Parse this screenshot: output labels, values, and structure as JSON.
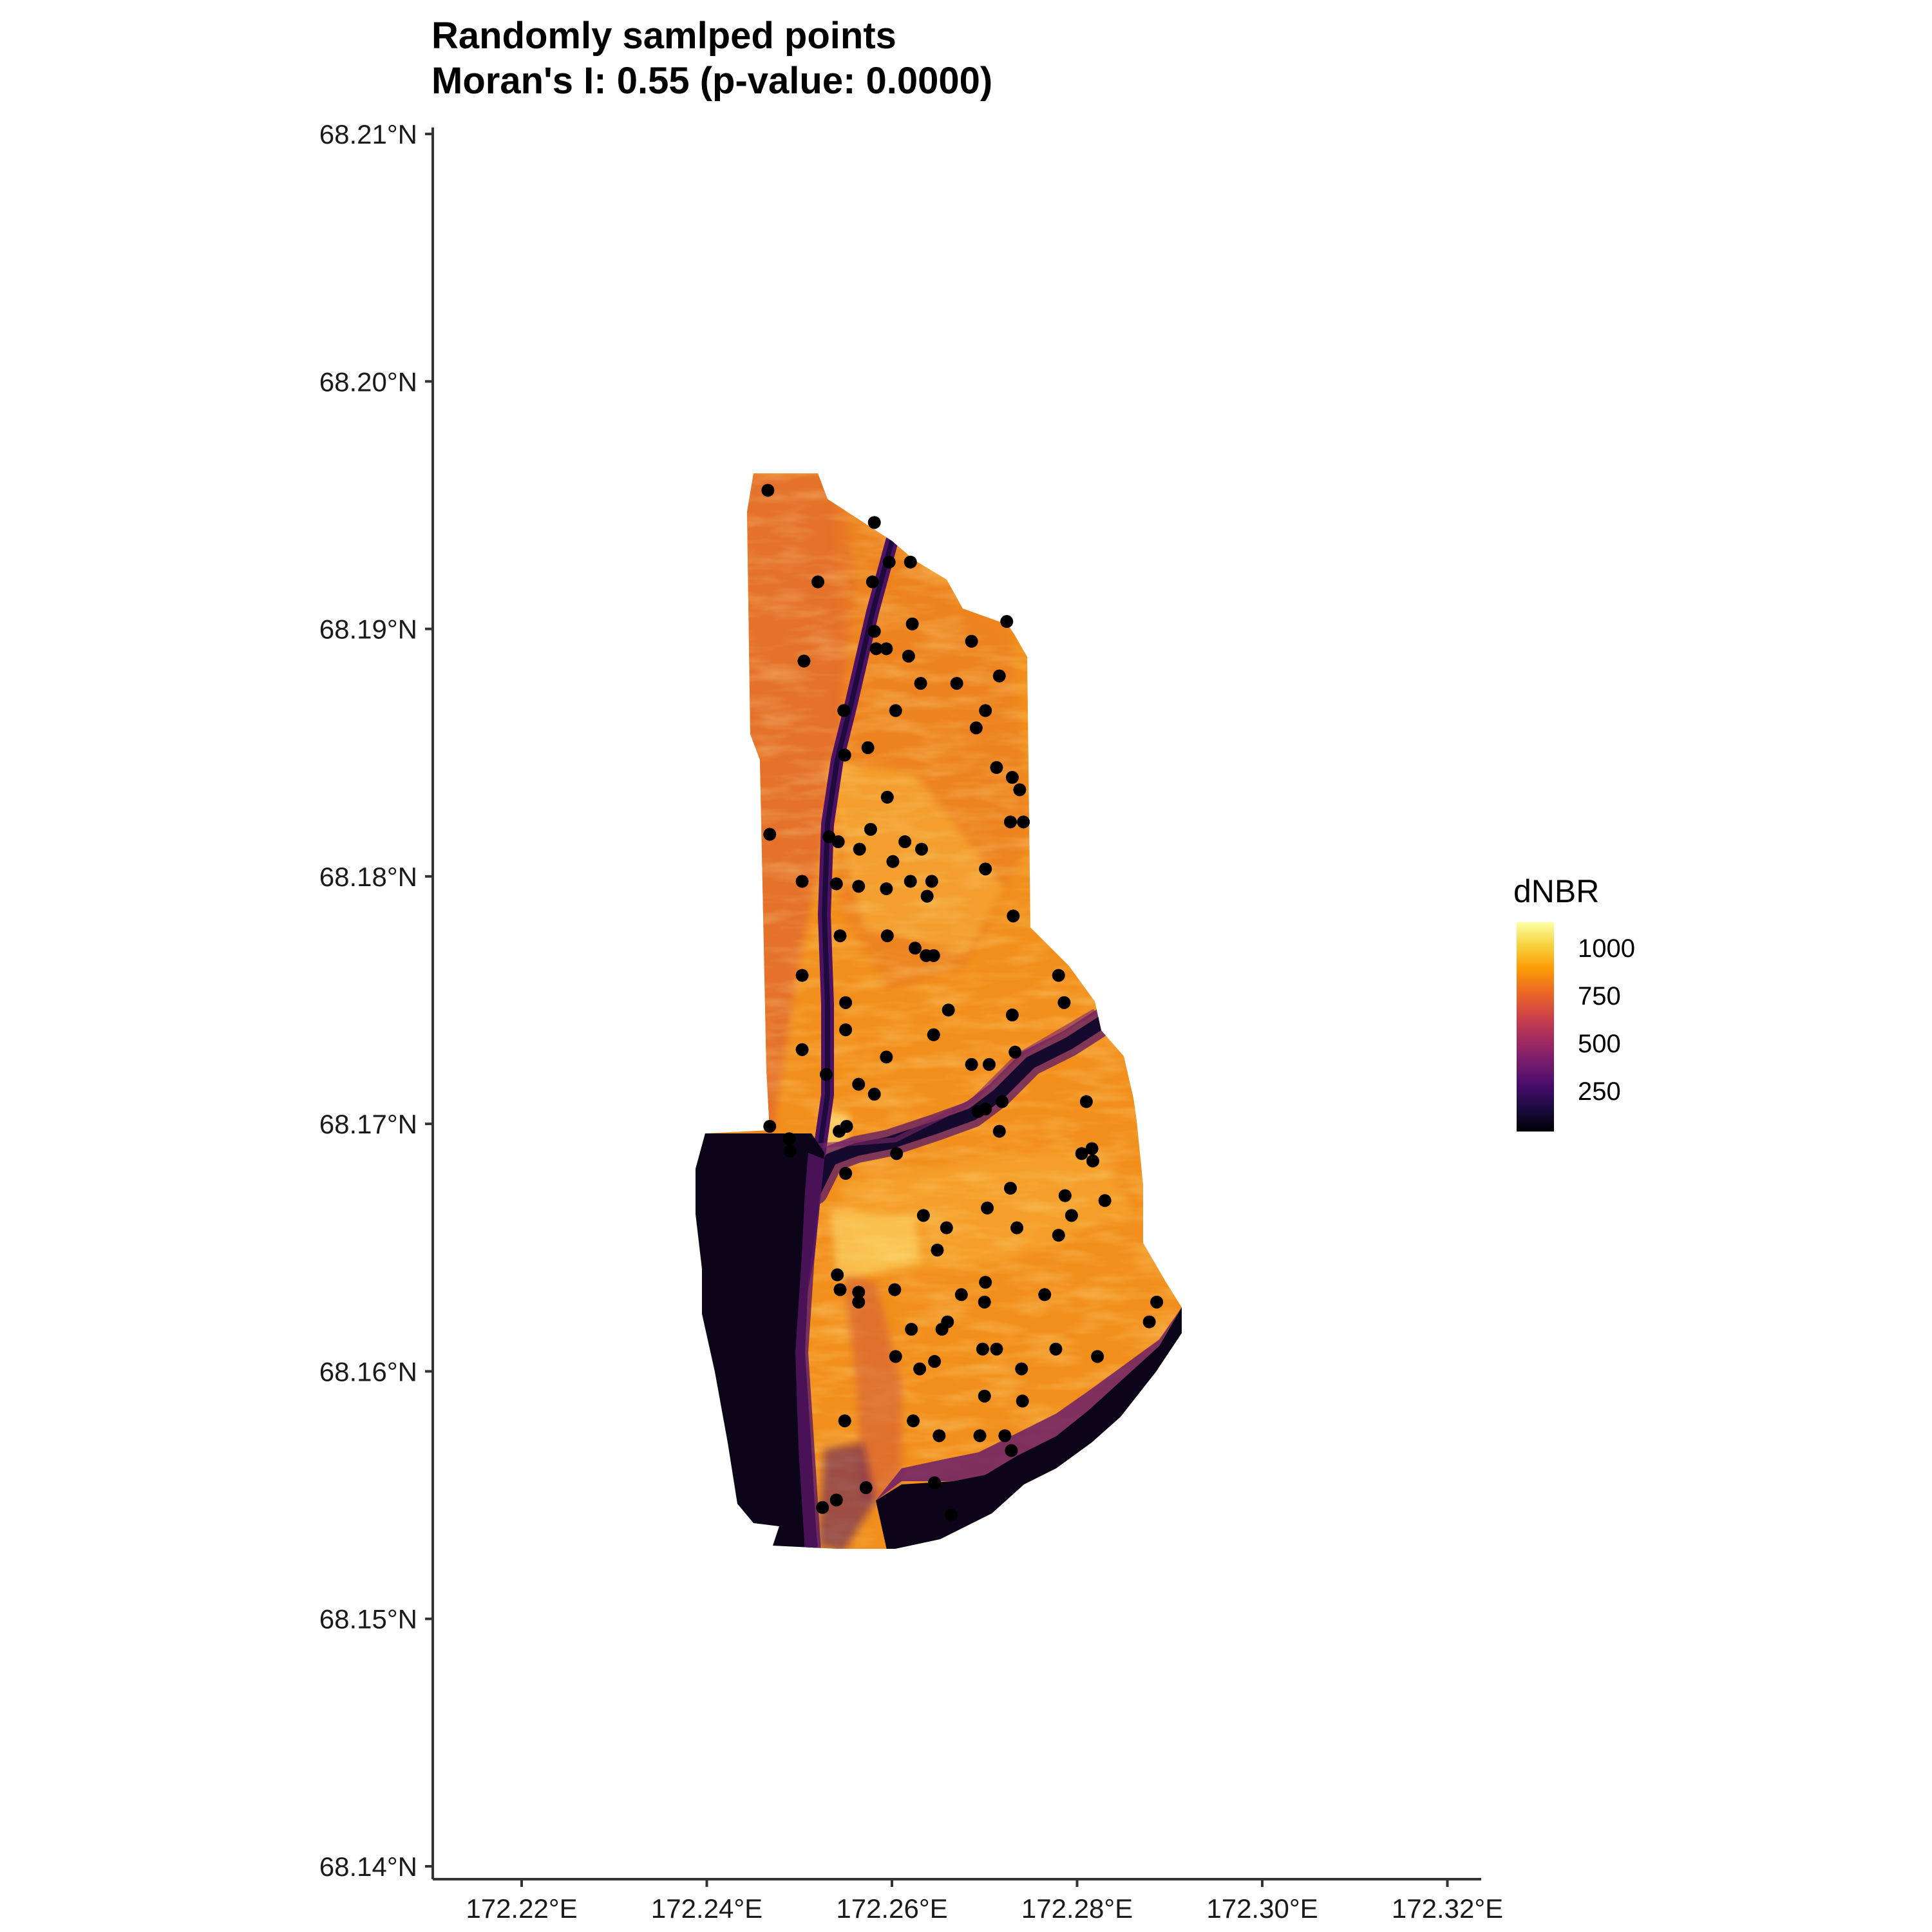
{
  "title": "Randomly samlped points",
  "subtitle": "Moran's I: 0.55 (p-value: 0.0000)",
  "legend": {
    "title": "dNBR",
    "breaks": [
      "1000",
      "750",
      "500",
      "250"
    ],
    "colors": [
      "#fcffa4",
      "#f7d13d",
      "#fb9b06",
      "#ed6925",
      "#cf4446",
      "#a52c60",
      "#781c6d",
      "#4a0c6b",
      "#1b0c41",
      "#000004"
    ]
  },
  "chart_data": {
    "type": "scatter",
    "x_ticks": [
      "172.22°E",
      "172.24°E",
      "172.26°E",
      "172.28°E",
      "172.30°E",
      "172.32°E"
    ],
    "y_ticks": [
      "68.21°N",
      "68.20°N",
      "68.19°N",
      "68.18°N",
      "68.17°N",
      "68.16°N",
      "68.15°N",
      "68.14°N"
    ],
    "xlim": [
      172.21,
      172.324
    ],
    "ylim": [
      68.14,
      68.21
    ],
    "raster_extent": {
      "lon": [
        172.244,
        172.289
      ],
      "lat": [
        68.1535,
        68.1963
      ]
    },
    "points": [
      [
        172.2466,
        68.1956
      ],
      [
        172.2581,
        68.1943
      ],
      [
        172.2597,
        68.1927
      ],
      [
        172.262,
        68.1927
      ],
      [
        172.252,
        68.1919
      ],
      [
        172.2579,
        68.1919
      ],
      [
        172.2724,
        68.1903
      ],
      [
        172.2622,
        68.1902
      ],
      [
        172.2581,
        68.1899
      ],
      [
        172.2686,
        68.1895
      ],
      [
        172.2583,
        68.1892
      ],
      [
        172.2594,
        68.1892
      ],
      [
        172.2618,
        68.1889
      ],
      [
        172.2505,
        68.1887
      ],
      [
        172.2716,
        68.1881
      ],
      [
        172.2631,
        68.1878
      ],
      [
        172.267,
        68.1878
      ],
      [
        172.2548,
        68.1867
      ],
      [
        172.2604,
        68.1867
      ],
      [
        172.2701,
        68.1867
      ],
      [
        172.2691,
        68.186
      ],
      [
        172.2574,
        68.1852
      ],
      [
        172.2549,
        68.1849
      ],
      [
        172.2713,
        68.1844
      ],
      [
        172.273,
        68.184
      ],
      [
        172.2738,
        68.1835
      ],
      [
        172.2595,
        68.1832
      ],
      [
        172.2728,
        68.1822
      ],
      [
        172.2742,
        68.1822
      ],
      [
        172.2577,
        68.1819
      ],
      [
        172.2468,
        68.1817
      ],
      [
        172.2532,
        68.1816
      ],
      [
        172.2542,
        68.1814
      ],
      [
        172.2614,
        68.1814
      ],
      [
        172.2632,
        68.1811
      ],
      [
        172.2565,
        68.1811
      ],
      [
        172.2601,
        68.1806
      ],
      [
        172.2701,
        68.1803
      ],
      [
        172.2503,
        68.1798
      ],
      [
        172.254,
        68.1797
      ],
      [
        172.2564,
        68.1796
      ],
      [
        172.262,
        68.1798
      ],
      [
        172.2643,
        68.1798
      ],
      [
        172.2638,
        68.1792
      ],
      [
        172.2594,
        68.1795
      ],
      [
        172.2731,
        68.1784
      ],
      [
        172.2544,
        68.1776
      ],
      [
        172.2595,
        68.1776
      ],
      [
        172.2625,
        68.1771
      ],
      [
        172.2637,
        68.1768
      ],
      [
        172.2645,
        68.1768
      ],
      [
        172.2503,
        68.176
      ],
      [
        172.278,
        68.176
      ],
      [
        172.255,
        68.1749
      ],
      [
        172.2786,
        68.1749
      ],
      [
        172.2661,
        68.1746
      ],
      [
        172.273,
        68.1744
      ],
      [
        172.255,
        68.1738
      ],
      [
        172.2645,
        68.1736
      ],
      [
        172.2503,
        68.173
      ],
      [
        172.2733,
        68.1729
      ],
      [
        172.2594,
        68.1727
      ],
      [
        172.2686,
        68.1724
      ],
      [
        172.2705,
        68.1724
      ],
      [
        172.2529,
        68.172
      ],
      [
        172.2564,
        68.1716
      ],
      [
        172.2581,
        68.1712
      ],
      [
        172.281,
        68.1709
      ],
      [
        172.2693,
        68.1705
      ],
      [
        172.2719,
        68.1709
      ],
      [
        172.2701,
        68.1706
      ],
      [
        172.2468,
        68.1699
      ],
      [
        172.2551,
        68.1699
      ],
      [
        172.2543,
        68.1697
      ],
      [
        172.2489,
        68.1694
      ],
      [
        172.2716,
        68.1697
      ],
      [
        172.2816,
        68.169
      ],
      [
        172.2805,
        68.1688
      ],
      [
        172.2817,
        68.1685
      ],
      [
        172.249,
        68.1689
      ],
      [
        172.2605,
        68.1688
      ],
      [
        172.255,
        68.168
      ],
      [
        172.2728,
        68.1674
      ],
      [
        172.2787,
        68.1671
      ],
      [
        172.283,
        68.1669
      ],
      [
        172.2703,
        68.1666
      ],
      [
        172.2634,
        68.1663
      ],
      [
        172.2794,
        68.1663
      ],
      [
        172.2659,
        68.1658
      ],
      [
        172.2735,
        68.1658
      ],
      [
        172.278,
        68.1655
      ],
      [
        172.2649,
        68.1649
      ],
      [
        172.2541,
        68.1639
      ],
      [
        172.2701,
        68.1636
      ],
      [
        172.2544,
        68.1633
      ],
      [
        172.2603,
        68.1633
      ],
      [
        172.2564,
        68.1632
      ],
      [
        172.2675,
        68.1631
      ],
      [
        172.2765,
        68.1631
      ],
      [
        172.2886,
        68.1628
      ],
      [
        172.27,
        68.1628
      ],
      [
        172.2564,
        68.1628
      ],
      [
        172.2621,
        68.1617
      ],
      [
        172.2654,
        68.1617
      ],
      [
        172.266,
        68.162
      ],
      [
        172.2878,
        68.162
      ],
      [
        172.2698,
        68.1609
      ],
      [
        172.2713,
        68.1609
      ],
      [
        172.2604,
        68.1606
      ],
      [
        172.2777,
        68.1609
      ],
      [
        172.2646,
        68.1604
      ],
      [
        172.2822,
        68.1606
      ],
      [
        172.263,
        68.1601
      ],
      [
        172.274,
        68.1601
      ],
      [
        172.27,
        68.159
      ],
      [
        172.2741,
        68.1588
      ],
      [
        172.2549,
        68.158
      ],
      [
        172.2623,
        68.158
      ],
      [
        172.2651,
        68.1574
      ],
      [
        172.2695,
        68.1574
      ],
      [
        172.2722,
        68.1574
      ],
      [
        172.2729,
        68.1568
      ],
      [
        172.2646,
        68.1555
      ],
      [
        172.2572,
        68.1553
      ],
      [
        172.254,
        68.1548
      ],
      [
        172.2664,
        68.1542
      ],
      [
        172.2525,
        68.1545
      ]
    ]
  }
}
